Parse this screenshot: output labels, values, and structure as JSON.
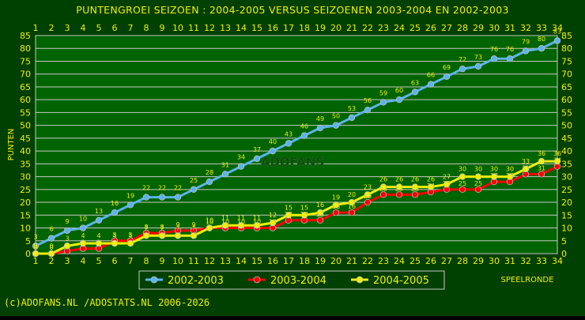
{
  "chart_data": {
    "type": "line",
    "title": "PUNTENGROEI  SEIZOEN : 2004-2005 VERSUS SEIZOENEN 2003-2004 EN 2002-2003",
    "ylabel": "PUNTEN",
    "xlabel": "SPEELRONDE",
    "x": [
      1,
      2,
      3,
      4,
      5,
      6,
      7,
      8,
      9,
      10,
      11,
      12,
      13,
      14,
      15,
      16,
      17,
      18,
      19,
      20,
      21,
      22,
      23,
      24,
      25,
      26,
      27,
      28,
      29,
      30,
      31,
      32,
      33,
      34
    ],
    "xlim": [
      1,
      34
    ],
    "ylim": [
      0,
      85
    ],
    "yticks": [
      0,
      5,
      10,
      15,
      20,
      25,
      30,
      35,
      40,
      45,
      50,
      55,
      60,
      65,
      70,
      75,
      80,
      85
    ],
    "grid": true,
    "legend_position": "bottom",
    "series": [
      {
        "name": "2002-2003",
        "color": "#5ab4ec",
        "values": [
          3,
          6,
          9,
          10,
          13,
          16,
          19,
          22,
          22,
          22,
          25,
          28,
          31,
          34,
          37,
          40,
          43,
          46,
          49,
          50,
          53,
          56,
          59,
          60,
          63,
          66,
          69,
          72,
          73,
          76,
          76,
          79,
          80,
          83
        ]
      },
      {
        "name": "2003-2004",
        "color": "#ff0000",
        "values": [
          0,
          0,
          1,
          2,
          2,
          5,
          5,
          8,
          8,
          9,
          9,
          10,
          10,
          10,
          10,
          10,
          13,
          13,
          13,
          16,
          16,
          20,
          23,
          23,
          23,
          24,
          25,
          25,
          25,
          28,
          28,
          31,
          31,
          34
        ]
      },
      {
        "name": "2004-2005",
        "color": "#f0f000",
        "values": [
          0,
          0,
          3,
          4,
          4,
          4,
          4,
          7,
          7,
          7,
          7,
          10,
          11,
          11,
          11,
          12,
          15,
          15,
          16,
          19,
          20,
          23,
          26,
          26,
          26,
          26,
          27,
          30,
          30,
          30,
          30,
          33,
          36,
          36
        ]
      }
    ]
  },
  "footer": "(c)ADOFANS.NL /ADOSTATS.NL 2006-2026",
  "watermark": "ADOFANS"
}
